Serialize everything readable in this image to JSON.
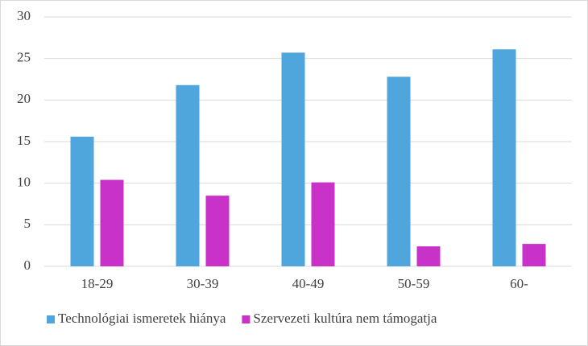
{
  "chart_data": {
    "type": "bar",
    "categories": [
      "18-29",
      "30-39",
      "40-49",
      "50-59",
      "60-"
    ],
    "series": [
      {
        "name": "Technológiai ismeretek hiánya",
        "color": "#4ea6dc",
        "values": [
          15.6,
          21.8,
          25.7,
          22.8,
          26.1
        ]
      },
      {
        "name": "Szervezeti kultúra nem támogatja",
        "color": "#c832c8",
        "values": [
          10.4,
          8.5,
          10.1,
          2.4,
          2.7
        ]
      }
    ],
    "ylim": [
      0,
      30
    ],
    "yticks": [
      0,
      5,
      10,
      15,
      20,
      25,
      30
    ],
    "grid": true,
    "legend": "bottom"
  }
}
